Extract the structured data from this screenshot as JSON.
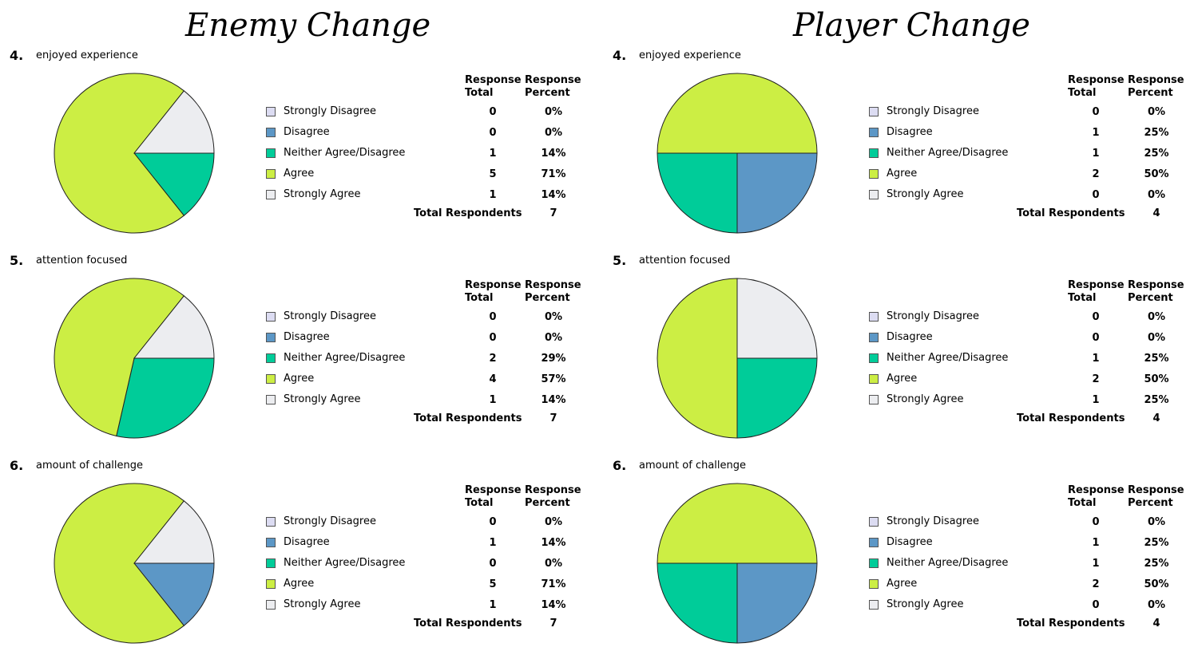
{
  "legend_colors": [
    "#dcdcf2",
    "#5c97c6",
    "#00cc99",
    "#ccee44",
    "#ecedf0"
  ],
  "columns": [
    {
      "title": "Enemy Change",
      "questions": [
        {
          "number": "4.",
          "text": "enjoyed experience",
          "header_total": [
            "Response",
            "Total"
          ],
          "header_percent": [
            "Response",
            "Percent"
          ],
          "rows": [
            {
              "label": "Strongly Disagree",
              "total": "0",
              "percent": "0%"
            },
            {
              "label": "Disagree",
              "total": "0",
              "percent": "0%"
            },
            {
              "label": "Neither Agree/Disagree",
              "total": "1",
              "percent": "14%"
            },
            {
              "label": "Agree",
              "total": "5",
              "percent": "71%"
            },
            {
              "label": "Strongly Agree",
              "total": "1",
              "percent": "14%"
            }
          ],
          "total_label": "Total Respondents",
          "total_value": "7"
        },
        {
          "number": "5.",
          "text": "attention focused",
          "header_total": [
            "Response",
            "Total"
          ],
          "header_percent": [
            "Response",
            "Percent"
          ],
          "rows": [
            {
              "label": "Strongly Disagree",
              "total": "0",
              "percent": "0%"
            },
            {
              "label": "Disagree",
              "total": "0",
              "percent": "0%"
            },
            {
              "label": "Neither Agree/Disagree",
              "total": "2",
              "percent": "29%"
            },
            {
              "label": "Agree",
              "total": "4",
              "percent": "57%"
            },
            {
              "label": "Strongly Agree",
              "total": "1",
              "percent": "14%"
            }
          ],
          "total_label": "Total Respondents",
          "total_value": "7"
        },
        {
          "number": "6.",
          "text": "amount of challenge",
          "header_total": [
            "Response",
            "Total"
          ],
          "header_percent": [
            "Response",
            "Percent"
          ],
          "rows": [
            {
              "label": "Strongly Disagree",
              "total": "0",
              "percent": "0%"
            },
            {
              "label": "Disagree",
              "total": "1",
              "percent": "14%"
            },
            {
              "label": "Neither Agree/Disagree",
              "total": "0",
              "percent": "0%"
            },
            {
              "label": "Agree",
              "total": "5",
              "percent": "71%"
            },
            {
              "label": "Strongly Agree",
              "total": "1",
              "percent": "14%"
            }
          ],
          "total_label": "Total Respondents",
          "total_value": "7"
        }
      ]
    },
    {
      "title": "Player Change",
      "questions": [
        {
          "number": "4.",
          "text": "enjoyed experience",
          "header_total": [
            "Response",
            "Total"
          ],
          "header_percent": [
            "Response",
            "Percent"
          ],
          "rows": [
            {
              "label": "Strongly Disagree",
              "total": "0",
              "percent": "0%"
            },
            {
              "label": "Disagree",
              "total": "1",
              "percent": "25%"
            },
            {
              "label": "Neither Agree/Disagree",
              "total": "1",
              "percent": "25%"
            },
            {
              "label": "Agree",
              "total": "2",
              "percent": "50%"
            },
            {
              "label": "Strongly Agree",
              "total": "0",
              "percent": "0%"
            }
          ],
          "total_label": "Total Respondents",
          "total_value": "4"
        },
        {
          "number": "5.",
          "text": "attention focused",
          "header_total": [
            "Response",
            "Total"
          ],
          "header_percent": [
            "Response",
            "Percent"
          ],
          "rows": [
            {
              "label": "Strongly Disagree",
              "total": "0",
              "percent": "0%"
            },
            {
              "label": "Disagree",
              "total": "0",
              "percent": "0%"
            },
            {
              "label": "Neither Agree/Disagree",
              "total": "1",
              "percent": "25%"
            },
            {
              "label": "Agree",
              "total": "2",
              "percent": "50%"
            },
            {
              "label": "Strongly Agree",
              "total": "1",
              "percent": "25%"
            }
          ],
          "total_label": "Total Respondents",
          "total_value": "4"
        },
        {
          "number": "6.",
          "text": "amount of challenge",
          "header_total": [
            "Response",
            "Total"
          ],
          "header_percent": [
            "Response",
            "Percent"
          ],
          "rows": [
            {
              "label": "Strongly Disagree",
              "total": "0",
              "percent": "0%"
            },
            {
              "label": "Disagree",
              "total": "1",
              "percent": "25%"
            },
            {
              "label": "Neither Agree/Disagree",
              "total": "1",
              "percent": "25%"
            },
            {
              "label": "Agree",
              "total": "2",
              "percent": "50%"
            },
            {
              "label": "Strongly Agree",
              "total": "0",
              "percent": "0%"
            }
          ],
          "total_label": "Total Respondents",
          "total_value": "4"
        }
      ]
    }
  ],
  "chart_data": [
    {
      "type": "pie",
      "title": "Enemy Change — 4. enjoyed experience",
      "categories": [
        "Strongly Disagree",
        "Disagree",
        "Neither Agree/Disagree",
        "Agree",
        "Strongly Agree"
      ],
      "values": [
        0,
        0,
        1,
        5,
        1
      ],
      "percent": [
        0,
        0,
        14,
        71,
        14
      ]
    },
    {
      "type": "pie",
      "title": "Enemy Change — 5. attention focused",
      "categories": [
        "Strongly Disagree",
        "Disagree",
        "Neither Agree/Disagree",
        "Agree",
        "Strongly Agree"
      ],
      "values": [
        0,
        0,
        2,
        4,
        1
      ],
      "percent": [
        0,
        0,
        29,
        57,
        14
      ]
    },
    {
      "type": "pie",
      "title": "Enemy Change — 6. amount of challenge",
      "categories": [
        "Strongly Disagree",
        "Disagree",
        "Neither Agree/Disagree",
        "Agree",
        "Strongly Agree"
      ],
      "values": [
        0,
        1,
        0,
        5,
        1
      ],
      "percent": [
        0,
        14,
        0,
        71,
        14
      ]
    },
    {
      "type": "pie",
      "title": "Player Change — 4. enjoyed experience",
      "categories": [
        "Strongly Disagree",
        "Disagree",
        "Neither Agree/Disagree",
        "Agree",
        "Strongly Agree"
      ],
      "values": [
        0,
        1,
        1,
        2,
        0
      ],
      "percent": [
        0,
        25,
        25,
        50,
        0
      ]
    },
    {
      "type": "pie",
      "title": "Player Change — 5. attention focused",
      "categories": [
        "Strongly Disagree",
        "Disagree",
        "Neither Agree/Disagree",
        "Agree",
        "Strongly Agree"
      ],
      "values": [
        0,
        0,
        1,
        2,
        1
      ],
      "percent": [
        0,
        0,
        25,
        50,
        25
      ]
    },
    {
      "type": "pie",
      "title": "Player Change — 6. amount of challenge",
      "categories": [
        "Strongly Disagree",
        "Disagree",
        "Neither Agree/Disagree",
        "Agree",
        "Strongly Agree"
      ],
      "values": [
        0,
        1,
        1,
        2,
        0
      ],
      "percent": [
        0,
        25,
        25,
        50,
        0
      ]
    }
  ]
}
